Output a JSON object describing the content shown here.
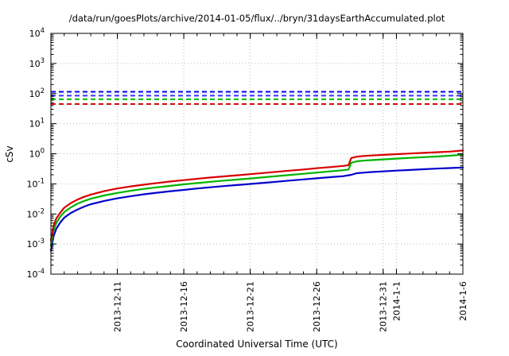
{
  "chart_data": {
    "type": "line",
    "title": "/data/run/goesPlots/archive/2014-01-05/flux/../bryn/31daysEarthAccumulated.plot",
    "xlabel": "Coordinated Universal Time (UTC)",
    "ylabel": "cSv",
    "y_scale": "log",
    "ylim_exponents": [
      -4,
      4
    ],
    "xlim_days": [
      0,
      31
    ],
    "x_start_date": "2013-12-06",
    "grid": "dotted",
    "legend_position": "none",
    "x_ticks": [
      {
        "day": 5,
        "label": "2013-12-11"
      },
      {
        "day": 10,
        "label": "2013-12-16"
      },
      {
        "day": 15,
        "label": "2013-12-21"
      },
      {
        "day": 20,
        "label": "2013-12-26"
      },
      {
        "day": 25,
        "label": "2013-12-31"
      },
      {
        "day": 26,
        "label": "2014-1-1"
      },
      {
        "day": 31,
        "label": "2014-1-6"
      }
    ],
    "threshold_lines": [
      {
        "name": "blue-upper-limit",
        "value": 115,
        "color": "#0000ee"
      },
      {
        "name": "blue-lower-limit",
        "value": 85,
        "color": "#3333ff"
      },
      {
        "name": "green-limit",
        "value": 65,
        "color": "#00bb00"
      },
      {
        "name": "red-limit",
        "value": 45,
        "color": "#cc0000"
      }
    ],
    "series": [
      {
        "name": "blue-accumulated-dose",
        "color": "#0000cc",
        "points": [
          [
            0,
            0.0006
          ],
          [
            0.2,
            0.0018
          ],
          [
            0.4,
            0.0032
          ],
          [
            0.7,
            0.0052
          ],
          [
            1,
            0.0075
          ],
          [
            1.5,
            0.0108
          ],
          [
            2,
            0.014
          ],
          [
            2.5,
            0.0175
          ],
          [
            3,
            0.021
          ],
          [
            4,
            0.027
          ],
          [
            5,
            0.033
          ],
          [
            6,
            0.039
          ],
          [
            7,
            0.045
          ],
          [
            8,
            0.051
          ],
          [
            9,
            0.057
          ],
          [
            10,
            0.063
          ],
          [
            11,
            0.07
          ],
          [
            12,
            0.077
          ],
          [
            13,
            0.084
          ],
          [
            14,
            0.091
          ],
          [
            15,
            0.099
          ],
          [
            16,
            0.108
          ],
          [
            17,
            0.118
          ],
          [
            18,
            0.129
          ],
          [
            19,
            0.14
          ],
          [
            20,
            0.153
          ],
          [
            21,
            0.166
          ],
          [
            22,
            0.18
          ],
          [
            22.6,
            0.2
          ],
          [
            23,
            0.225
          ],
          [
            23.5,
            0.235
          ],
          [
            24,
            0.245
          ],
          [
            25,
            0.26
          ],
          [
            26,
            0.275
          ],
          [
            27,
            0.29
          ],
          [
            28,
            0.305
          ],
          [
            29,
            0.32
          ],
          [
            30,
            0.335
          ],
          [
            31,
            0.35
          ]
        ]
      },
      {
        "name": "green-accumulated-dose",
        "color": "#00b400",
        "points": [
          [
            0,
            0.0009
          ],
          [
            0.2,
            0.0028
          ],
          [
            0.4,
            0.005
          ],
          [
            0.7,
            0.008
          ],
          [
            1,
            0.0115
          ],
          [
            1.5,
            0.0165
          ],
          [
            2,
            0.022
          ],
          [
            2.5,
            0.027
          ],
          [
            3,
            0.032
          ],
          [
            4,
            0.041
          ],
          [
            5,
            0.05
          ],
          [
            6,
            0.059
          ],
          [
            7,
            0.068
          ],
          [
            8,
            0.077
          ],
          [
            9,
            0.086
          ],
          [
            10,
            0.096
          ],
          [
            11,
            0.106
          ],
          [
            12,
            0.117
          ],
          [
            13,
            0.128
          ],
          [
            14,
            0.139
          ],
          [
            15,
            0.151
          ],
          [
            16,
            0.165
          ],
          [
            17,
            0.181
          ],
          [
            18,
            0.198
          ],
          [
            19,
            0.216
          ],
          [
            20,
            0.237
          ],
          [
            21,
            0.259
          ],
          [
            22,
            0.284
          ],
          [
            22.4,
            0.3
          ],
          [
            22.6,
            0.5
          ],
          [
            23,
            0.56
          ],
          [
            23.5,
            0.59
          ],
          [
            24,
            0.61
          ],
          [
            25,
            0.65
          ],
          [
            26,
            0.69
          ],
          [
            27,
            0.73
          ],
          [
            28,
            0.77
          ],
          [
            29,
            0.81
          ],
          [
            30,
            0.86
          ],
          [
            31,
            0.93
          ]
        ]
      },
      {
        "name": "red-accumulated-dose",
        "color": "#d80000",
        "points": [
          [
            0,
            0.0013
          ],
          [
            0.2,
            0.004
          ],
          [
            0.4,
            0.007
          ],
          [
            0.7,
            0.011
          ],
          [
            1,
            0.016
          ],
          [
            1.5,
            0.023
          ],
          [
            2,
            0.03
          ],
          [
            2.5,
            0.037
          ],
          [
            3,
            0.044
          ],
          [
            4,
            0.057
          ],
          [
            5,
            0.07
          ],
          [
            6,
            0.082
          ],
          [
            7,
            0.094
          ],
          [
            8,
            0.107
          ],
          [
            9,
            0.12
          ],
          [
            10,
            0.133
          ],
          [
            11,
            0.147
          ],
          [
            12,
            0.162
          ],
          [
            13,
            0.177
          ],
          [
            14,
            0.193
          ],
          [
            15,
            0.21
          ],
          [
            16,
            0.23
          ],
          [
            17,
            0.252
          ],
          [
            18,
            0.275
          ],
          [
            19,
            0.3
          ],
          [
            20,
            0.33
          ],
          [
            21,
            0.36
          ],
          [
            22,
            0.395
          ],
          [
            22.4,
            0.42
          ],
          [
            22.6,
            0.72
          ],
          [
            23,
            0.8
          ],
          [
            23.5,
            0.84
          ],
          [
            24,
            0.87
          ],
          [
            25,
            0.92
          ],
          [
            26,
            0.97
          ],
          [
            27,
            1.02
          ],
          [
            28,
            1.07
          ],
          [
            29,
            1.12
          ],
          [
            30,
            1.18
          ],
          [
            31,
            1.28
          ]
        ]
      }
    ],
    "colors": {
      "grid": "#bbbbbb",
      "border": "#000000",
      "background": "#ffffff"
    }
  }
}
